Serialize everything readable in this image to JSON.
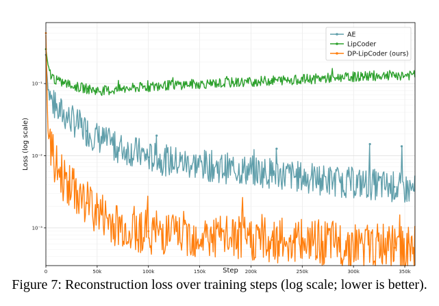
{
  "caption": "Figure 7: Reconstruction loss over training steps (log scale; lower is better).",
  "chart_data": {
    "type": "line",
    "xlabel": "Step",
    "ylabel": "Loss (log scale)",
    "xscale": "linear",
    "yscale": "log",
    "xlim": [
      0,
      360000
    ],
    "ylim": [
      0.0003,
      0.7
    ],
    "grid": true,
    "legend_position": "top-right",
    "x_ticks": [
      0,
      50000,
      100000,
      150000,
      200000,
      250000,
      300000,
      350000
    ],
    "x_tick_labels": [
      "0",
      "50k",
      "100k",
      "150k",
      "200k",
      "250k",
      "300k",
      "350k"
    ],
    "y_ticks": [
      0.001,
      0.01,
      0.1
    ],
    "y_tick_labels": [
      "10⁻³",
      "10⁻²",
      "10⁻¹"
    ],
    "series": [
      {
        "name": "AE",
        "color": "#5f9eaa",
        "x": [
          0,
          2000,
          5000,
          10000,
          20000,
          30000,
          40000,
          50000,
          60000,
          70000,
          80000,
          90000,
          100000,
          120000,
          140000,
          160000,
          180000,
          200000,
          220000,
          240000,
          260000,
          280000,
          300000,
          320000,
          340000,
          360000
        ],
        "y": [
          0.25,
          0.09,
          0.06,
          0.045,
          0.035,
          0.028,
          0.022,
          0.018,
          0.015,
          0.013,
          0.012,
          0.011,
          0.0095,
          0.0085,
          0.0078,
          0.0072,
          0.0066,
          0.0062,
          0.0058,
          0.0053,
          0.0048,
          0.0045,
          0.0042,
          0.004,
          0.0037,
          0.0033
        ],
        "spikes": [
          {
            "x": 108000,
            "y": 0.019
          },
          {
            "x": 225000,
            "y": 0.0125
          },
          {
            "x": 316000,
            "y": 0.0145
          },
          {
            "x": 347000,
            "y": 0.0135
          }
        ]
      },
      {
        "name": "LipCoder",
        "color": "#2ca02c",
        "x": [
          0,
          2000,
          5000,
          10000,
          20000,
          30000,
          40000,
          50000,
          60000,
          70000,
          80000,
          90000,
          100000,
          120000,
          140000,
          160000,
          180000,
          200000,
          220000,
          240000,
          260000,
          280000,
          300000,
          320000,
          340000,
          360000
        ],
        "y": [
          0.3,
          0.18,
          0.13,
          0.11,
          0.1,
          0.09,
          0.085,
          0.08,
          0.08,
          0.082,
          0.085,
          0.088,
          0.09,
          0.095,
          0.098,
          0.1,
          0.103,
          0.106,
          0.11,
          0.113,
          0.116,
          0.12,
          0.124,
          0.128,
          0.13,
          0.13
        ],
        "spikes": []
      },
      {
        "name": "DP-LipCoder (ours)",
        "color": "#ff7f0e",
        "x": [
          0,
          2000,
          5000,
          10000,
          20000,
          30000,
          40000,
          50000,
          60000,
          70000,
          80000,
          90000,
          100000,
          120000,
          140000,
          160000,
          180000,
          200000,
          220000,
          240000,
          260000,
          280000,
          300000,
          320000,
          340000,
          360000
        ],
        "y": [
          0.5,
          0.02,
          0.012,
          0.007,
          0.0042,
          0.003,
          0.0022,
          0.0017,
          0.0013,
          0.0011,
          0.001,
          0.00095,
          0.0009,
          0.00085,
          0.0008,
          0.00075,
          0.00072,
          0.0007,
          0.00068,
          0.00065,
          0.00063,
          0.0006,
          0.00058,
          0.00056,
          0.00053,
          0.0005
        ],
        "spikes": []
      }
    ]
  }
}
